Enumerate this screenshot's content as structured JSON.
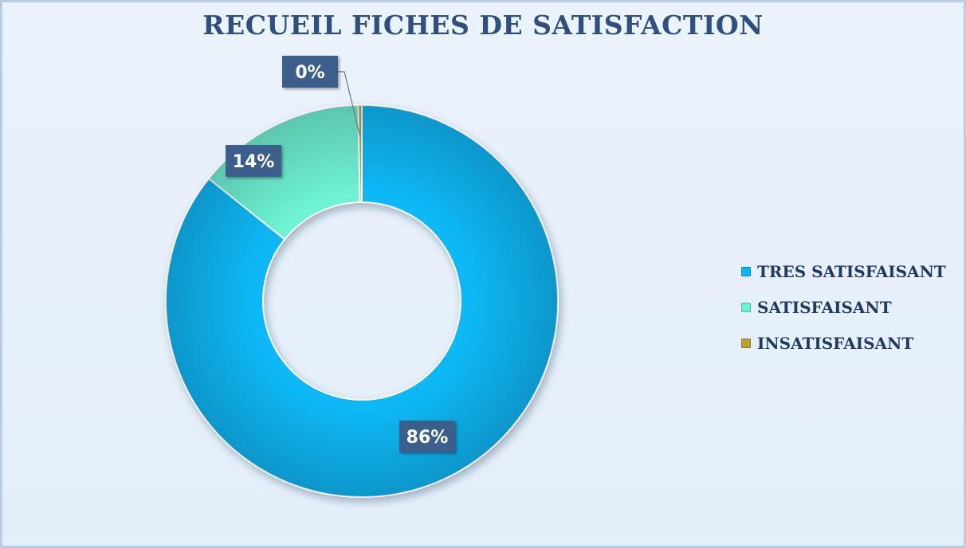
{
  "chart_data": {
    "type": "pie",
    "donut": true,
    "title": "RECUEIL FICHES DE SATISFACTION",
    "slices": [
      {
        "name": "TRES SATISFAISANT",
        "value": 86,
        "label": "86%",
        "color": "#0bb8f6"
      },
      {
        "name": "SATISFAISANT",
        "value": 14,
        "label": "14%",
        "color": "#6ff2d4"
      },
      {
        "name": "INSATISFAISANT",
        "value": 0.3,
        "label": "0%",
        "color": "#b8a23a"
      }
    ],
    "legend_position": "right",
    "label_box_color": "#3b5f8a"
  }
}
